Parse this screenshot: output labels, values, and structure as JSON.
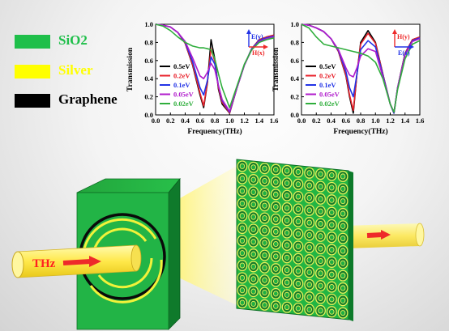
{
  "legend": {
    "items": [
      {
        "label": "SiO2",
        "color": "#1fbf4a",
        "text_color": "#1fbf4a"
      },
      {
        "label": "Silver",
        "color": "#ffff00",
        "text_color": "#ffff00"
      },
      {
        "label": "Graphene",
        "color": "#000000",
        "text_color": "#000000"
      }
    ]
  },
  "beam": {
    "label": "THz",
    "label_color": "#ff2020"
  },
  "chart_data": [
    {
      "type": "line",
      "xlabel": "Frequency(THz)",
      "ylabel": "Transmission",
      "xlim": [
        0.0,
        1.6
      ],
      "ylim": [
        0.0,
        1.0
      ],
      "xticks": [
        "0.0",
        "0.2",
        "0.4",
        "0.6",
        "0.8",
        "1.0",
        "1.2",
        "1.4",
        "1.6"
      ],
      "yticks": [
        "0.0",
        "0.2",
        "0.4",
        "0.6",
        "0.8",
        "1.0"
      ],
      "polarization": {
        "e_label": "E(y)",
        "h_label": "H(x)"
      },
      "legend_position": "bottom-left",
      "x": [
        0.0,
        0.1,
        0.2,
        0.3,
        0.4,
        0.5,
        0.6,
        0.65,
        0.7,
        0.75,
        0.8,
        0.85,
        0.9,
        1.0,
        1.1,
        1.2,
        1.3,
        1.4,
        1.5,
        1.6
      ],
      "series": [
        {
          "name": "0.5eV",
          "color": "#000000",
          "values": [
            1.0,
            0.99,
            0.97,
            0.91,
            0.79,
            0.55,
            0.22,
            0.08,
            0.35,
            0.83,
            0.62,
            0.28,
            0.12,
            0.02,
            0.3,
            0.55,
            0.73,
            0.83,
            0.86,
            0.88
          ]
        },
        {
          "name": "0.2eV",
          "color": "#e8202a",
          "values": [
            1.0,
            0.99,
            0.97,
            0.91,
            0.79,
            0.56,
            0.24,
            0.1,
            0.36,
            0.73,
            0.59,
            0.3,
            0.14,
            0.02,
            0.3,
            0.55,
            0.73,
            0.83,
            0.86,
            0.88
          ]
        },
        {
          "name": "0.1eV",
          "color": "#2233e6",
          "values": [
            1.0,
            0.99,
            0.97,
            0.91,
            0.8,
            0.59,
            0.3,
            0.22,
            0.38,
            0.64,
            0.56,
            0.32,
            0.16,
            0.03,
            0.3,
            0.55,
            0.73,
            0.82,
            0.85,
            0.87
          ]
        },
        {
          "name": "0.05eV",
          "color": "#b01ccc",
          "values": [
            1.0,
            0.99,
            0.97,
            0.91,
            0.81,
            0.63,
            0.43,
            0.4,
            0.47,
            0.57,
            0.5,
            0.32,
            0.17,
            0.04,
            0.3,
            0.55,
            0.72,
            0.81,
            0.84,
            0.86
          ]
        },
        {
          "name": "0.02eV",
          "color": "#2fae3c",
          "values": [
            1.0,
            0.98,
            0.93,
            0.86,
            0.8,
            0.76,
            0.74,
            0.74,
            0.73,
            0.72,
            0.62,
            0.45,
            0.3,
            0.08,
            0.32,
            0.56,
            0.72,
            0.8,
            0.83,
            0.85
          ]
        }
      ]
    },
    {
      "type": "line",
      "xlabel": "Frequency(THz)",
      "ylabel": "Transmission",
      "xlim": [
        0.0,
        1.6
      ],
      "ylim": [
        0.0,
        1.0
      ],
      "xticks": [
        "0.0",
        "0.2",
        "0.4",
        "0.6",
        "0.8",
        "1.0",
        "1.2",
        "1.4",
        "1.6"
      ],
      "yticks": [
        "0.0",
        "0.2",
        "0.4",
        "0.6",
        "0.8",
        "1.0"
      ],
      "polarization": {
        "e_label": "E(x)",
        "h_label": "H(y)"
      },
      "legend_position": "bottom-left",
      "x": [
        0.0,
        0.1,
        0.2,
        0.3,
        0.4,
        0.5,
        0.6,
        0.65,
        0.7,
        0.75,
        0.8,
        0.9,
        1.0,
        1.1,
        1.2,
        1.25,
        1.3,
        1.4,
        1.5,
        1.6
      ],
      "series": [
        {
          "name": "0.5eV",
          "color": "#000000",
          "values": [
            1.0,
            0.99,
            0.96,
            0.92,
            0.84,
            0.7,
            0.43,
            0.2,
            0.02,
            0.45,
            0.8,
            0.93,
            0.8,
            0.45,
            0.12,
            0.02,
            0.3,
            0.68,
            0.83,
            0.86
          ]
        },
        {
          "name": "0.2eV",
          "color": "#e8202a",
          "values": [
            1.0,
            0.99,
            0.96,
            0.92,
            0.84,
            0.7,
            0.44,
            0.22,
            0.05,
            0.45,
            0.78,
            0.9,
            0.79,
            0.45,
            0.12,
            0.02,
            0.3,
            0.68,
            0.83,
            0.86
          ]
        },
        {
          "name": "0.1eV",
          "color": "#2233e6",
          "values": [
            1.0,
            0.99,
            0.96,
            0.92,
            0.84,
            0.71,
            0.48,
            0.3,
            0.2,
            0.45,
            0.72,
            0.82,
            0.75,
            0.44,
            0.12,
            0.02,
            0.3,
            0.67,
            0.82,
            0.85
          ]
        },
        {
          "name": "0.05eV",
          "color": "#b01ccc",
          "values": [
            1.0,
            0.99,
            0.96,
            0.92,
            0.84,
            0.72,
            0.52,
            0.44,
            0.42,
            0.52,
            0.65,
            0.73,
            0.7,
            0.42,
            0.12,
            0.03,
            0.3,
            0.66,
            0.81,
            0.84
          ]
        },
        {
          "name": "0.02eV",
          "color": "#2fae3c",
          "values": [
            1.0,
            0.96,
            0.86,
            0.78,
            0.76,
            0.74,
            0.72,
            0.71,
            0.7,
            0.69,
            0.68,
            0.65,
            0.58,
            0.4,
            0.12,
            0.03,
            0.28,
            0.62,
            0.78,
            0.82
          ]
        }
      ]
    }
  ]
}
